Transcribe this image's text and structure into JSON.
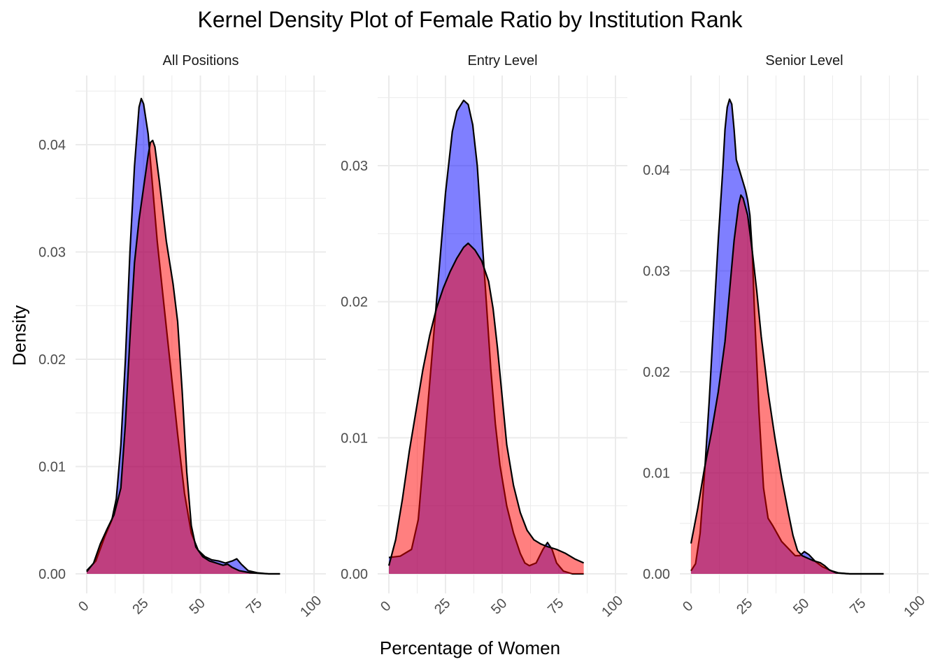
{
  "chart_data": {
    "type": "area",
    "title": "Kernel Density Plot of Female Ratio by Institution Rank",
    "xlabel": "Percentage of Women",
    "ylabel": "Density",
    "grid": true,
    "legend": "none",
    "colors": {
      "blue": "#0000ff",
      "red": "#ff0000",
      "outline": "#000000",
      "grid": "#ebebeb"
    },
    "xlim": [
      0,
      100
    ],
    "xticks": [
      0,
      25,
      50,
      75,
      100
    ],
    "panels": [
      {
        "name": "All Positions",
        "ylim": [
          0,
          0.045
        ],
        "yticks": [
          0.0,
          0.01,
          0.02,
          0.03,
          0.04
        ],
        "ytick_labels": [
          "0.00",
          "0.01",
          "0.02",
          "0.03",
          "0.04"
        ],
        "series": [
          {
            "color": "blue",
            "points": [
              [
                0,
                0.0003
              ],
              [
                4,
                0.0012
              ],
              [
                8,
                0.0035
              ],
              [
                11,
                0.005
              ],
              [
                13,
                0.007
              ],
              [
                15,
                0.012
              ],
              [
                17,
                0.02
              ],
              [
                19,
                0.03
              ],
              [
                21,
                0.038
              ],
              [
                23,
                0.0435
              ],
              [
                24,
                0.0443
              ],
              [
                25,
                0.0438
              ],
              [
                27,
                0.041
              ],
              [
                29,
                0.036
              ],
              [
                31,
                0.031
              ],
              [
                34,
                0.025
              ],
              [
                37,
                0.019
              ],
              [
                40,
                0.013
              ],
              [
                43,
                0.0075
              ],
              [
                46,
                0.0038
              ],
              [
                49,
                0.0022
              ],
              [
                52,
                0.0016
              ],
              [
                55,
                0.0013
              ],
              [
                58,
                0.0012
              ],
              [
                61,
                0.001
              ],
              [
                64,
                0.0012
              ],
              [
                66,
                0.0014
              ],
              [
                68,
                0.0009
              ],
              [
                71,
                0.0003
              ],
              [
                75,
                0.0001
              ],
              [
                80,
                0.0
              ],
              [
                85,
                0.0
              ]
            ]
          },
          {
            "color": "red",
            "points": [
              [
                0,
                0.0002
              ],
              [
                3,
                0.001
              ],
              [
                6,
                0.0028
              ],
              [
                9,
                0.0042
              ],
              [
                12,
                0.0055
              ],
              [
                15,
                0.008
              ],
              [
                17,
                0.014
              ],
              [
                19,
                0.022
              ],
              [
                21,
                0.029
              ],
              [
                23,
                0.033
              ],
              [
                25,
                0.036
              ],
              [
                27,
                0.039
              ],
              [
                28,
                0.0402
              ],
              [
                29,
                0.0404
              ],
              [
                30,
                0.0398
              ],
              [
                32,
                0.0365
              ],
              [
                35,
                0.031
              ],
              [
                38,
                0.027
              ],
              [
                40,
                0.0235
              ],
              [
                42,
                0.017
              ],
              [
                44,
                0.0095
              ],
              [
                46,
                0.0045
              ],
              [
                48,
                0.0025
              ],
              [
                51,
                0.0016
              ],
              [
                54,
                0.0012
              ],
              [
                57,
                0.001
              ],
              [
                60,
                0.0008
              ],
              [
                62,
                0.0009
              ],
              [
                64,
                0.0006
              ],
              [
                67,
                0.0003
              ],
              [
                72,
                0.0001
              ],
              [
                80,
                0.0
              ],
              [
                85,
                0.0
              ]
            ]
          }
        ]
      },
      {
        "name": "Entry Level",
        "ylim": [
          0,
          0.035
        ],
        "yticks": [
          0.0,
          0.01,
          0.02,
          0.03
        ],
        "ytick_labels": [
          "0.00",
          "0.01",
          "0.02",
          "0.03"
        ],
        "series": [
          {
            "color": "blue",
            "points": [
              [
                0,
                0.0012
              ],
              [
                5,
                0.0013
              ],
              [
                10,
                0.0018
              ],
              [
                13,
                0.004
              ],
              [
                16,
                0.01
              ],
              [
                19,
                0.016
              ],
              [
                22,
                0.022
              ],
              [
                25,
                0.028
              ],
              [
                28,
                0.0325
              ],
              [
                30,
                0.034
              ],
              [
                33,
                0.0348
              ],
              [
                35,
                0.0345
              ],
              [
                37,
                0.033
              ],
              [
                39,
                0.03
              ],
              [
                41,
                0.025
              ],
              [
                43,
                0.02
              ],
              [
                45,
                0.015
              ],
              [
                47,
                0.011
              ],
              [
                49,
                0.008
              ],
              [
                52,
                0.005
              ],
              [
                55,
                0.003
              ],
              [
                58,
                0.0015
              ],
              [
                60,
                0.0008
              ],
              [
                62,
                0.0006
              ],
              [
                65,
                0.0008
              ],
              [
                68,
                0.0018
              ],
              [
                70,
                0.0023
              ],
              [
                72,
                0.0018
              ],
              [
                74,
                0.0008
              ],
              [
                77,
                0.0002
              ],
              [
                81,
                0.0
              ],
              [
                86,
                0.0
              ]
            ]
          },
          {
            "color": "red",
            "points": [
              [
                0,
                0.0006
              ],
              [
                3,
                0.0025
              ],
              [
                6,
                0.0055
              ],
              [
                9,
                0.009
              ],
              [
                12,
                0.012
              ],
              [
                15,
                0.015
              ],
              [
                18,
                0.0175
              ],
              [
                21,
                0.0195
              ],
              [
                24,
                0.021
              ],
              [
                27,
                0.0222
              ],
              [
                30,
                0.0232
              ],
              [
                33,
                0.024
              ],
              [
                35,
                0.0243
              ],
              [
                38,
                0.0238
              ],
              [
                41,
                0.023
              ],
              [
                44,
                0.0215
              ],
              [
                46,
                0.0195
              ],
              [
                48,
                0.0165
              ],
              [
                50,
                0.013
              ],
              [
                52,
                0.0095
              ],
              [
                55,
                0.0065
              ],
              [
                58,
                0.0045
              ],
              [
                61,
                0.0032
              ],
              [
                64,
                0.0025
              ],
              [
                67,
                0.0022
              ],
              [
                70,
                0.002
              ],
              [
                74,
                0.0018
              ],
              [
                78,
                0.0015
              ],
              [
                82,
                0.0011
              ],
              [
                86,
                0.0008
              ]
            ]
          }
        ]
      },
      {
        "name": "Senior Level",
        "ylim": [
          0,
          0.047
        ],
        "yticks": [
          0.0,
          0.01,
          0.02,
          0.03,
          0.04
        ],
        "ytick_labels": [
          "0.00",
          "0.01",
          "0.02",
          "0.03",
          "0.04"
        ],
        "series": [
          {
            "color": "blue",
            "points": [
              [
                0,
                0.0003
              ],
              [
                2,
                0.001
              ],
              [
                4,
                0.004
              ],
              [
                6,
                0.01
              ],
              [
                8,
                0.017
              ],
              [
                10,
                0.025
              ],
              [
                12,
                0.033
              ],
              [
                14,
                0.04
              ],
              [
                15,
                0.044
              ],
              [
                16,
                0.0462
              ],
              [
                17,
                0.047
              ],
              [
                18,
                0.0465
              ],
              [
                19,
                0.044
              ],
              [
                20,
                0.041
              ],
              [
                22,
                0.0395
              ],
              [
                24,
                0.038
              ],
              [
                25,
                0.037
              ],
              [
                26,
                0.0355
              ],
              [
                27,
                0.032
              ],
              [
                28,
                0.026
              ],
              [
                30,
                0.016
              ],
              [
                32,
                0.0085
              ],
              [
                34,
                0.0055
              ],
              [
                36,
                0.0048
              ],
              [
                38,
                0.004
              ],
              [
                40,
                0.0032
              ],
              [
                43,
                0.0025
              ],
              [
                46,
                0.0018
              ],
              [
                48,
                0.0018
              ],
              [
                50,
                0.0022
              ],
              [
                52,
                0.0019
              ],
              [
                55,
                0.0012
              ],
              [
                58,
                0.0007
              ],
              [
                62,
                0.0003
              ],
              [
                65,
                0.0001
              ],
              [
                70,
                0.0
              ],
              [
                85,
                0.0
              ]
            ]
          },
          {
            "color": "red",
            "points": [
              [
                0,
                0.003
              ],
              [
                3,
                0.0065
              ],
              [
                6,
                0.0105
              ],
              [
                9,
                0.014
              ],
              [
                12,
                0.018
              ],
              [
                15,
                0.023
              ],
              [
                17,
                0.028
              ],
              [
                19,
                0.033
              ],
              [
                21,
                0.0365
              ],
              [
                22,
                0.0375
              ],
              [
                23,
                0.0372
              ],
              [
                25,
                0.0355
              ],
              [
                27,
                0.032
              ],
              [
                29,
                0.028
              ],
              [
                31,
                0.0235
              ],
              [
                34,
                0.018
              ],
              [
                37,
                0.0135
              ],
              [
                40,
                0.0095
              ],
              [
                43,
                0.006
              ],
              [
                45,
                0.0038
              ],
              [
                47,
                0.0023
              ],
              [
                49,
                0.0018
              ],
              [
                51,
                0.0016
              ],
              [
                54,
                0.0013
              ],
              [
                57,
                0.0011
              ],
              [
                59,
                0.0008
              ],
              [
                61,
                0.0004
              ],
              [
                64,
                0.0001
              ],
              [
                70,
                0.0
              ],
              [
                85,
                0.0
              ]
            ]
          }
        ]
      }
    ]
  }
}
